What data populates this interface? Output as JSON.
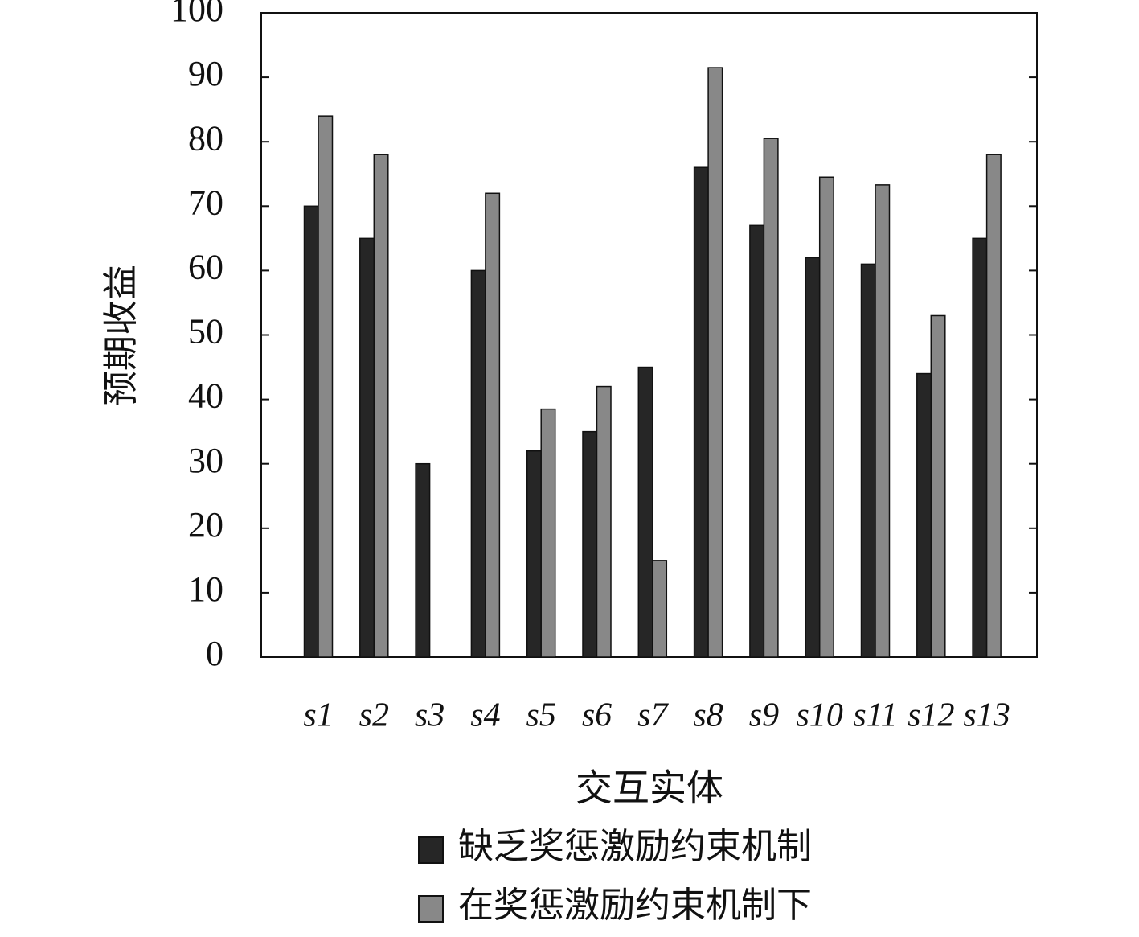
{
  "chart_data": {
    "type": "bar",
    "xlabel": "交互实体",
    "ylabel": "预期收益",
    "categories": [
      "s1",
      "s2",
      "s3",
      "s4",
      "s5",
      "s6",
      "s7",
      "s8",
      "s9",
      "s10",
      "s11",
      "s12",
      "s13"
    ],
    "series": [
      {
        "name": "缺乏奖惩激励约束机制",
        "color": "#262626",
        "values": [
          70,
          65,
          30,
          60,
          32,
          35,
          45,
          76,
          67,
          62,
          61,
          44,
          65
        ]
      },
      {
        "name": "在奖惩激励约束机制下",
        "color": "#888888",
        "values": [
          84,
          78,
          0,
          72,
          38.5,
          42,
          15,
          91.5,
          80.5,
          74.5,
          73.3,
          53,
          78
        ]
      }
    ],
    "ylim": [
      0,
      100
    ],
    "yticks": [
      0,
      10,
      20,
      30,
      40,
      50,
      60,
      70,
      80,
      90,
      100
    ]
  }
}
